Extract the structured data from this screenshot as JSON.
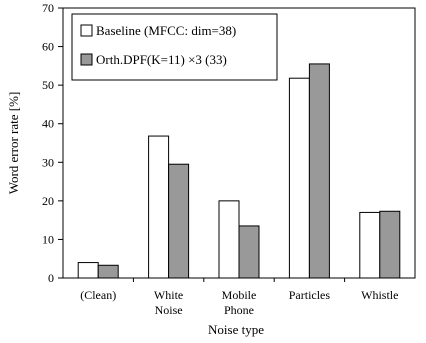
{
  "chart_data": {
    "type": "bar",
    "xlabel": "Noise type",
    "ylabel": "Word error rate [%]",
    "ylim": [
      0,
      70
    ],
    "yticks": [
      0,
      10,
      20,
      30,
      40,
      50,
      60,
      70
    ],
    "grid": false,
    "legend_position": "top-left",
    "categories": [
      [
        "(Clean)"
      ],
      [
        "White",
        "Noise"
      ],
      [
        "Mobile",
        "Phone"
      ],
      [
        "Particles"
      ],
      [
        "Whistle"
      ]
    ],
    "series": [
      {
        "name": "Baseline (MFCC: dim=38)",
        "values": [
          4.0,
          36.8,
          20.0,
          51.8,
          17.0
        ],
        "color": "#ffffff"
      },
      {
        "name": "Orth.DPF(K=11) ×3 (33)",
        "values": [
          3.3,
          29.5,
          13.5,
          55.5,
          17.3
        ],
        "color": "#999999"
      }
    ]
  }
}
